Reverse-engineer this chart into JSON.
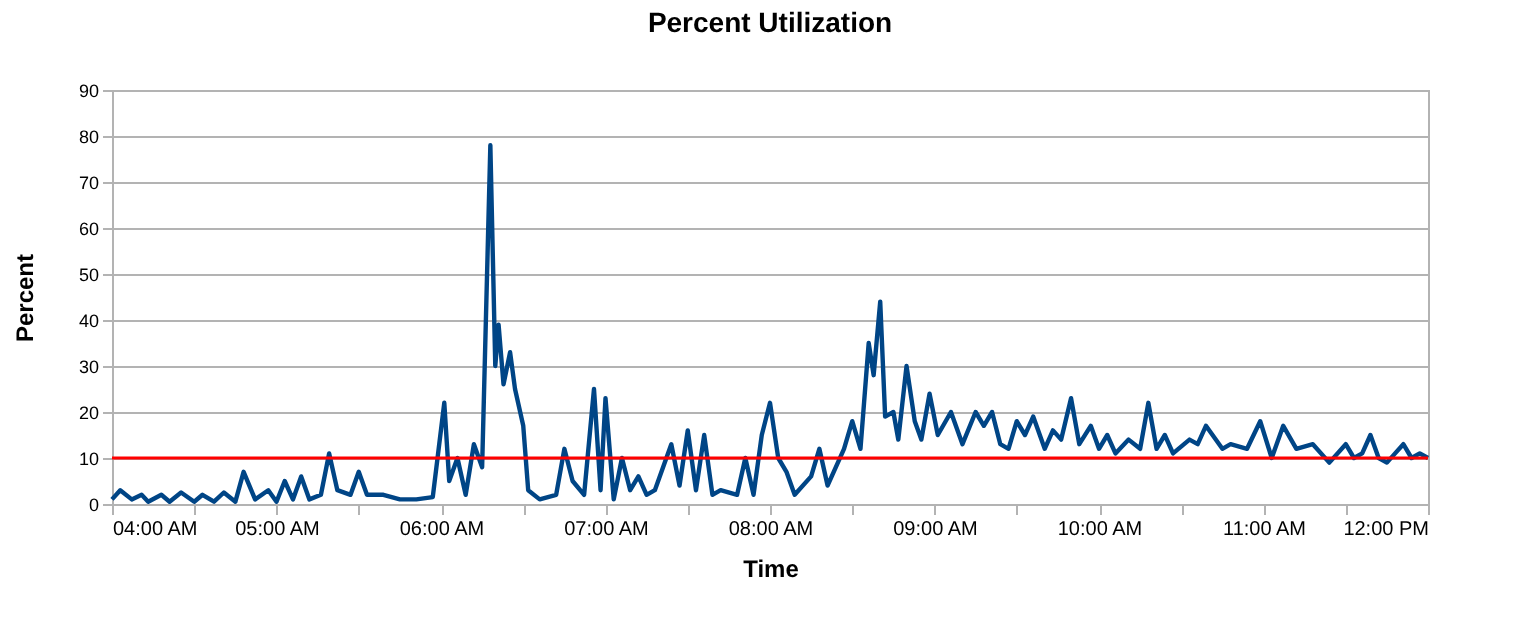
{
  "chart_data": {
    "type": "line",
    "title": "Percent Utilization",
    "xlabel": "Time",
    "ylabel": "Percent",
    "x": [
      4.0,
      4.05,
      4.12,
      4.18,
      4.22,
      4.3,
      4.35,
      4.42,
      4.5,
      4.55,
      4.62,
      4.68,
      4.75,
      4.8,
      4.87,
      4.95,
      5.0,
      5.05,
      5.1,
      5.15,
      5.2,
      5.27,
      5.32,
      5.37,
      5.45,
      5.5,
      5.55,
      5.65,
      5.75,
      5.85,
      5.95,
      6.02,
      6.05,
      6.1,
      6.15,
      6.2,
      6.25,
      6.3,
      6.33,
      6.35,
      6.38,
      6.42,
      6.45,
      6.5,
      6.53,
      6.6,
      6.7,
      6.75,
      6.8,
      6.87,
      6.93,
      6.97,
      7.0,
      7.05,
      7.1,
      7.15,
      7.2,
      7.25,
      7.3,
      7.4,
      7.45,
      7.5,
      7.55,
      7.6,
      7.65,
      7.7,
      7.8,
      7.85,
      7.9,
      7.95,
      8.0,
      8.05,
      8.1,
      8.15,
      8.25,
      8.3,
      8.35,
      8.45,
      8.5,
      8.55,
      8.6,
      8.63,
      8.67,
      8.7,
      8.75,
      8.78,
      8.83,
      8.88,
      8.92,
      8.97,
      9.02,
      9.1,
      9.17,
      9.25,
      9.3,
      9.35,
      9.4,
      9.45,
      9.5,
      9.55,
      9.6,
      9.67,
      9.72,
      9.77,
      9.83,
      9.88,
      9.95,
      10.0,
      10.05,
      10.1,
      10.18,
      10.25,
      10.3,
      10.35,
      10.4,
      10.45,
      10.55,
      10.6,
      10.65,
      10.75,
      10.8,
      10.9,
      10.98,
      11.05,
      11.12,
      11.2,
      11.3,
      11.4,
      11.5,
      11.55,
      11.6,
      11.65,
      11.7,
      11.75,
      11.8,
      11.85,
      11.9,
      11.95,
      12.0
    ],
    "series": [
      {
        "color": "#004586",
        "values": [
          1,
          3,
          1,
          2,
          0.5,
          2,
          0.5,
          2.5,
          0.5,
          2,
          0.5,
          2.5,
          0.5,
          7,
          1,
          3,
          0.5,
          5,
          1,
          6,
          1,
          2,
          11,
          3,
          2,
          7,
          2,
          2,
          1,
          1,
          1.5,
          22,
          5,
          10,
          2,
          13,
          8,
          78,
          30,
          39,
          26,
          33,
          25,
          17,
          3,
          1,
          2,
          12,
          5,
          2,
          25,
          3,
          23,
          1,
          10,
          3,
          6,
          2,
          3,
          13,
          4,
          16,
          3,
          15,
          2,
          3,
          2,
          10,
          2,
          15,
          22,
          10,
          7,
          2,
          6,
          12,
          4,
          12,
          18,
          12,
          35,
          28,
          44,
          19,
          20,
          14,
          30,
          18,
          14,
          24,
          15,
          20,
          13,
          20,
          17,
          20,
          13,
          12,
          18,
          15,
          19,
          12,
          16,
          14,
          23,
          13,
          17,
          12,
          15,
          11,
          14,
          12,
          22,
          12,
          15,
          11,
          14,
          13,
          17,
          12,
          13,
          12,
          18,
          10,
          17,
          12,
          13,
          9,
          13,
          10,
          11,
          15,
          10,
          9,
          11,
          13,
          10,
          11,
          10
        ]
      }
    ],
    "xlim": [
      4,
      12
    ],
    "xticks": [
      {
        "value": 4,
        "label": "04:00 AM"
      },
      {
        "value": 4.5,
        "label": null
      },
      {
        "value": 5,
        "label": "05:00 AM"
      },
      {
        "value": 5.5,
        "label": null
      },
      {
        "value": 6,
        "label": "06:00 AM"
      },
      {
        "value": 6.5,
        "label": null
      },
      {
        "value": 7,
        "label": "07:00 AM"
      },
      {
        "value": 7.5,
        "label": null
      },
      {
        "value": 8,
        "label": "08:00 AM"
      },
      {
        "value": 8.5,
        "label": null
      },
      {
        "value": 9,
        "label": "09:00 AM"
      },
      {
        "value": 9.5,
        "label": null
      },
      {
        "value": 10,
        "label": "10:00 AM"
      },
      {
        "value": 10.5,
        "label": null
      },
      {
        "value": 11,
        "label": "11:00 AM"
      },
      {
        "value": 11.5,
        "label": null
      },
      {
        "value": 12,
        "label": "12:00 PM"
      }
    ],
    "ylim": [
      0,
      90
    ],
    "yticks": [
      0,
      10,
      20,
      30,
      40,
      50,
      60,
      70,
      80,
      90
    ],
    "ref_lines": [
      {
        "axis": "y",
        "value": 10,
        "color": "#ff0000",
        "line_style": "solid"
      }
    ],
    "grid": "y",
    "legend": false,
    "marker": "none",
    "line_style": "solid"
  }
}
